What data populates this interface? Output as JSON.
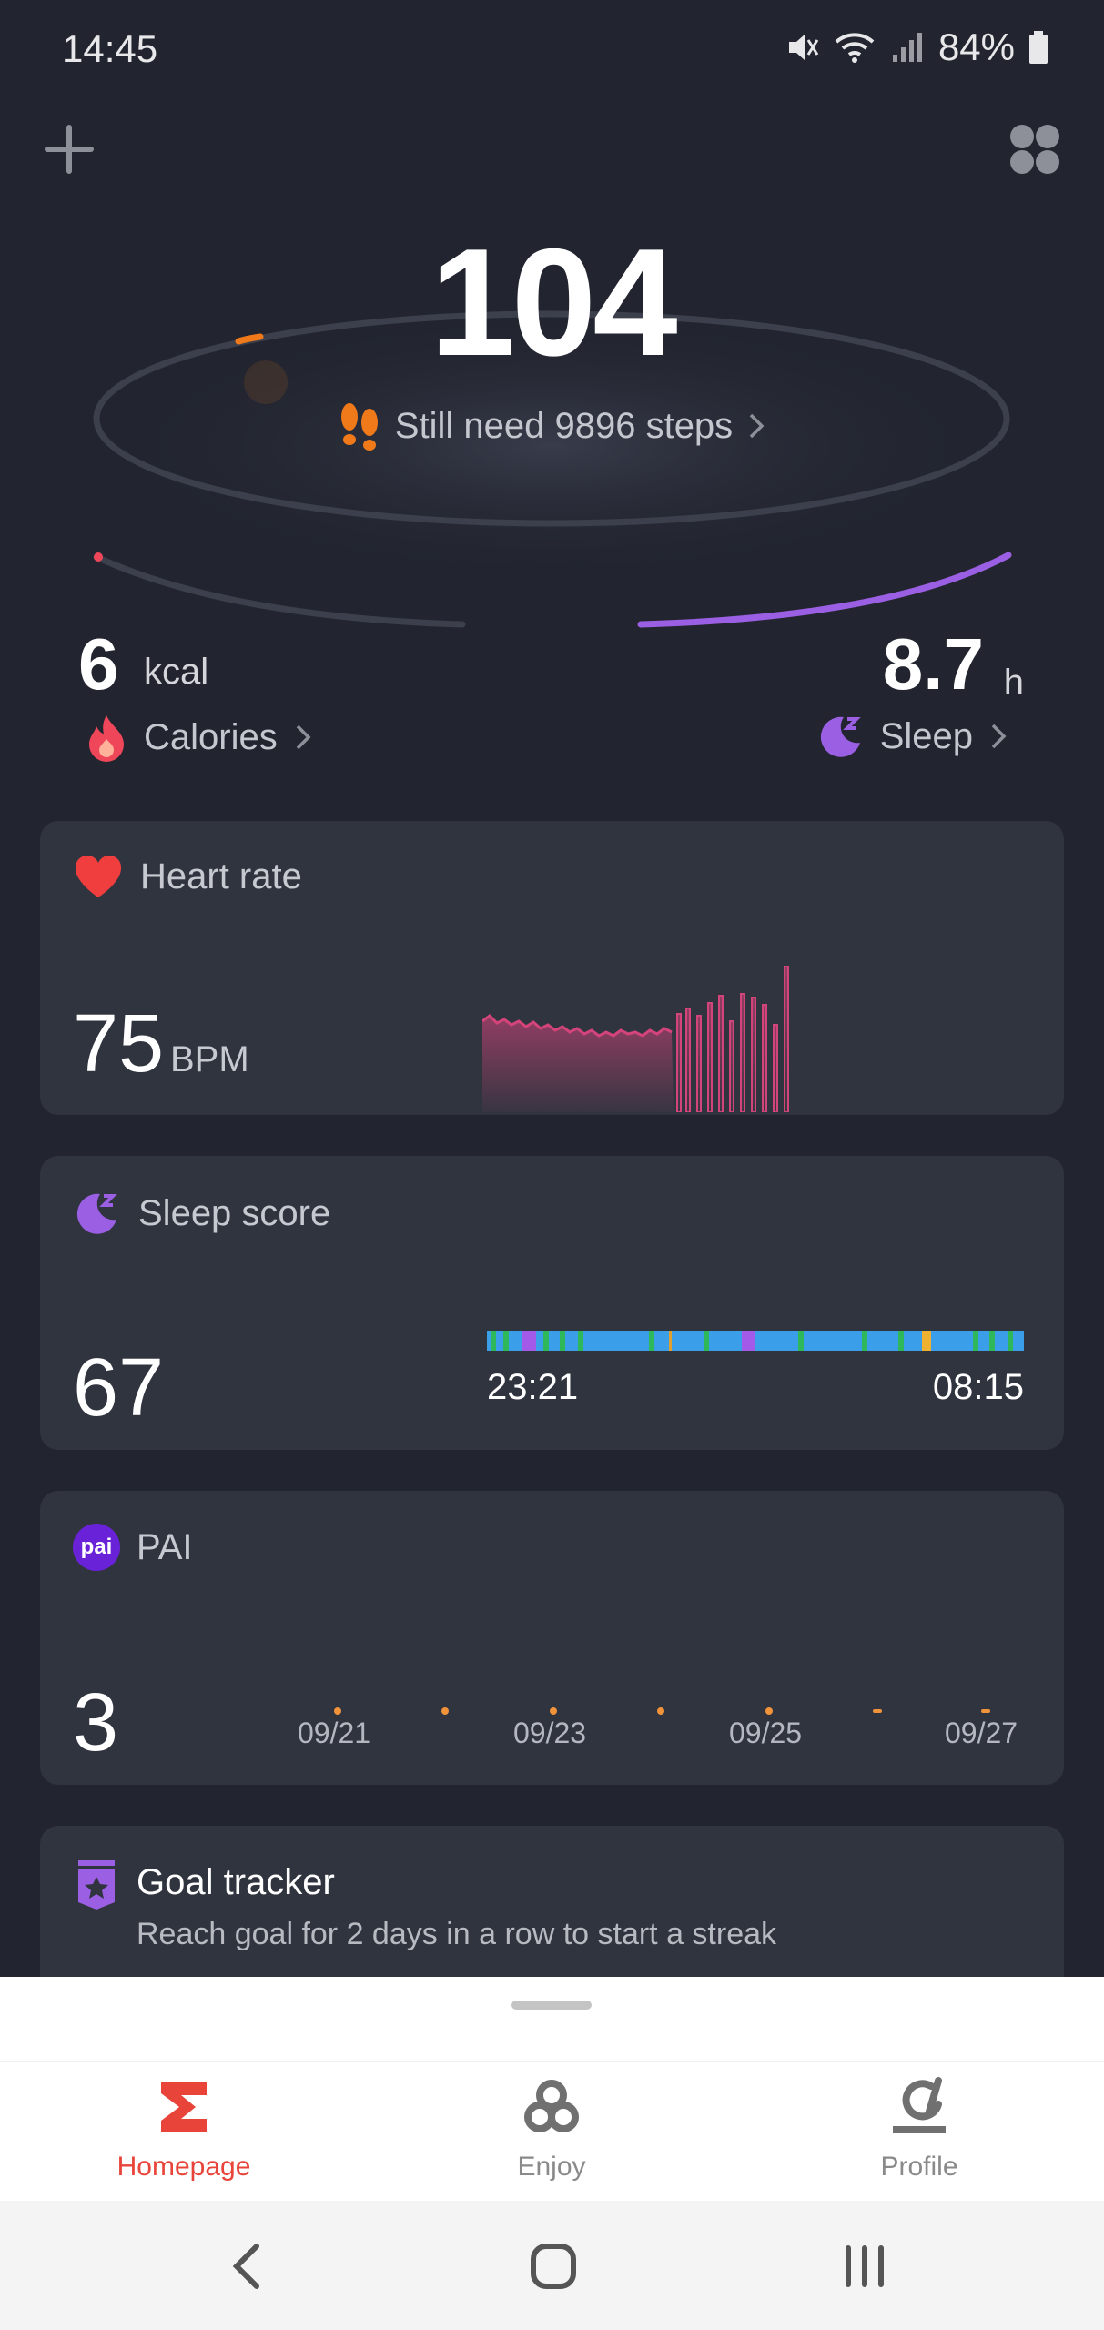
{
  "status_bar": {
    "time": "14:45",
    "battery": "84%",
    "icons": [
      "mute-icon",
      "wifi-icon",
      "signal-icon",
      "battery-icon"
    ]
  },
  "top_actions": {
    "add_icon": "plus-icon",
    "grid_icon": "grid-icon"
  },
  "steps": {
    "value": "104",
    "remaining_text": "Still need 9896 steps",
    "icon": "footprints-icon",
    "goal_progress": 0.0104
  },
  "summary": {
    "calories": {
      "value": "6",
      "unit": "kcal",
      "label": "Calories",
      "icon": "flame-icon"
    },
    "sleep": {
      "value": "8.7",
      "unit": "h",
      "label": "Sleep",
      "icon": "moon-icon"
    }
  },
  "cards": {
    "heart_rate": {
      "title": "Heart rate",
      "value": "75",
      "unit": "BPM",
      "icon": "heart-icon"
    },
    "sleep_score": {
      "title": "Sleep score",
      "value": "67",
      "start_time": "23:21",
      "end_time": "08:15",
      "icon": "moon-icon"
    },
    "pai": {
      "title": "PAI",
      "badge": "pai",
      "value": "3",
      "dates": [
        "09/21",
        "09/23",
        "09/25",
        "09/27"
      ]
    },
    "goal_tracker": {
      "title": "Goal tracker",
      "subtitle": "Reach goal for 2 days in a row to start a streak",
      "icon": "badge-star-icon"
    }
  },
  "bottom_nav": {
    "items": [
      {
        "label": "Homepage",
        "icon": "sigma-icon",
        "active": true
      },
      {
        "label": "Enjoy",
        "icon": "rings-icon",
        "active": false
      },
      {
        "label": "Profile",
        "icon": "profile-icon",
        "active": false
      }
    ]
  },
  "system_nav": {
    "icons": [
      "back-icon",
      "home-icon",
      "recents-icon"
    ]
  },
  "colors": {
    "background": "#22252f",
    "card": "#30343f",
    "steps_orange": "#f07a1a",
    "sleep_purple": "#9b5fe3",
    "heart_red": "#f03e3e",
    "active_tab": "#e8443a"
  }
}
